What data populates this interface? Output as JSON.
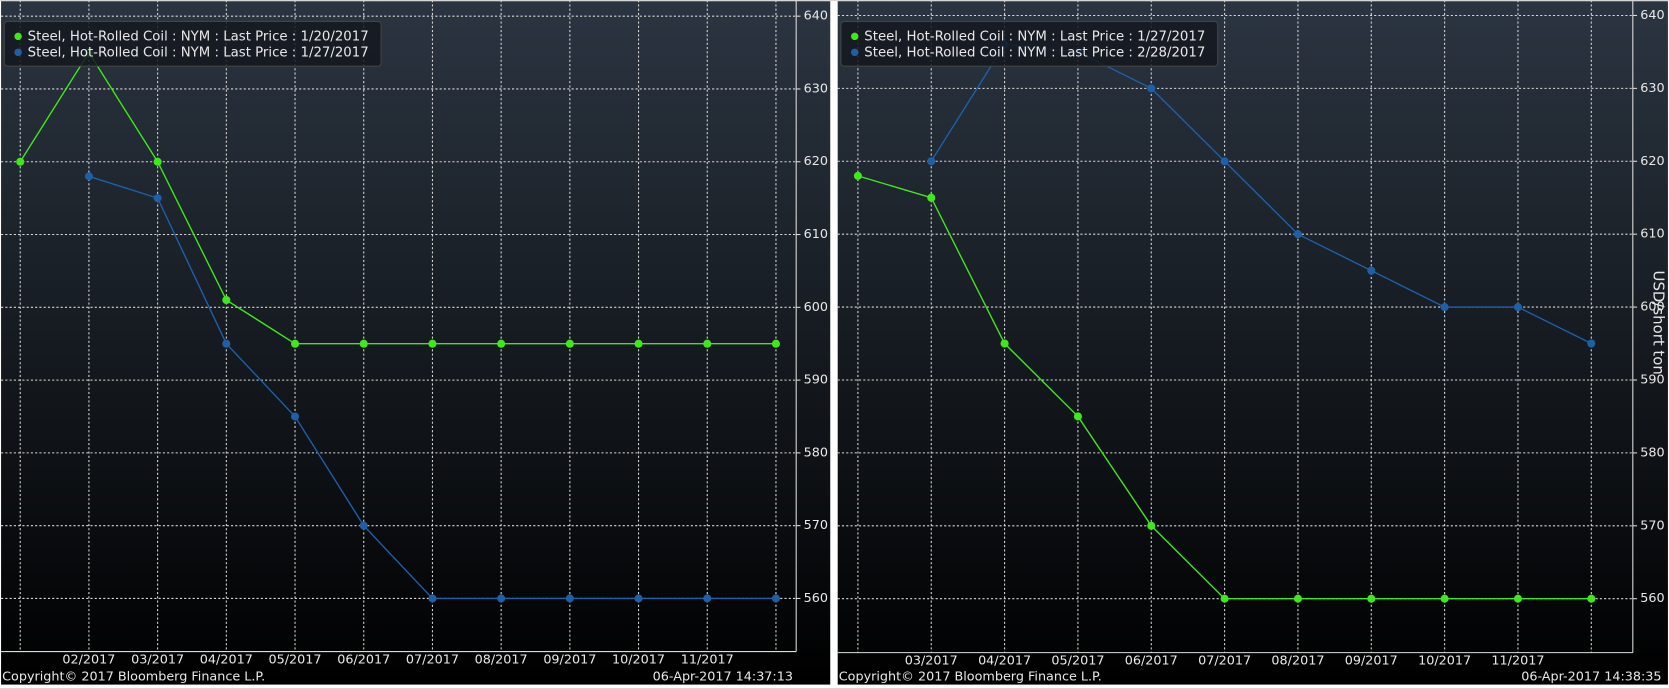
{
  "chart_data": [
    {
      "type": "line",
      "categories": [
        null,
        "02/2017",
        "03/2017",
        "04/2017",
        "05/2017",
        "06/2017",
        "07/2017",
        "08/2017",
        "09/2017",
        "10/2017",
        "11/2017",
        null
      ],
      "series": [
        {
          "name": "Steel, Hot-Rolled Coil : NYM : Last Price : 1/20/2017",
          "color": "#3fe81a",
          "values": [
            620,
            635,
            620,
            601,
            595,
            595,
            595,
            595,
            595,
            595,
            595,
            595
          ]
        },
        {
          "name": "Steel, Hot-Rolled Coil : NYM : Last Price : 1/27/2017",
          "color": "#1f5fa8",
          "values": [
            null,
            618,
            615,
            595,
            585,
            570,
            560,
            560,
            560,
            560,
            560,
            560
          ]
        }
      ],
      "ylim": [
        552.7,
        642.2
      ],
      "yticks": [
        560,
        570,
        580,
        590,
        600,
        610,
        620,
        630,
        640
      ],
      "grid": true,
      "legend": "top-left",
      "copyright": "Copyright© 2017 Bloomberg Finance L.P.",
      "timestamp": "06-Apr-2017 14:37:13"
    },
    {
      "type": "line",
      "categories": [
        null,
        "03/2017",
        "04/2017",
        "05/2017",
        "06/2017",
        "07/2017",
        "08/2017",
        "09/2017",
        "10/2017",
        "11/2017",
        null
      ],
      "series": [
        {
          "name": "Steel, Hot-Rolled Coil : NYM : Last Price : 1/27/2017",
          "color": "#3fe81a",
          "values": [
            618,
            615,
            595,
            585,
            570,
            560,
            560,
            560,
            560,
            560,
            560
          ]
        },
        {
          "name": "Steel, Hot-Rolled Coil : NYM : Last Price : 2/28/2017",
          "color": "#1f5fa8",
          "values": [
            null,
            620,
            636,
            635,
            630,
            620,
            610,
            605,
            600,
            600,
            595
          ]
        }
      ],
      "ylabel": "USD/short ton",
      "ylim": [
        552.6,
        642.1
      ],
      "yticks": [
        560,
        570,
        580,
        590,
        600,
        610,
        620,
        630,
        640
      ],
      "grid": true,
      "legend": "top-left",
      "copyright": "Copyright© 2017 Bloomberg Finance L.P.",
      "timestamp": "06-Apr-2017 14:38:35"
    }
  ]
}
